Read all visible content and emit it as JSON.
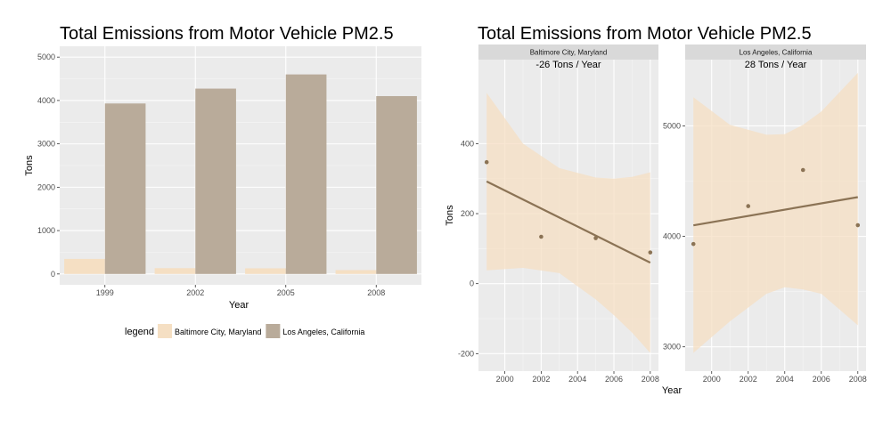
{
  "chart_data": [
    {
      "type": "bar",
      "title": "Total Emissions from Motor Vehicle PM2.5",
      "xlabel": "Year",
      "ylabel": "Tons",
      "ylim": [
        -250,
        5250
      ],
      "yticks": [
        "0",
        "1000",
        "2000",
        "3000",
        "4000",
        "5000"
      ],
      "ytick_values": [
        0,
        1000,
        2000,
        3000,
        4000,
        5000
      ],
      "categories": [
        "1999",
        "2002",
        "2005",
        "2008"
      ],
      "grid": true,
      "legend_position": "bottom",
      "legend_title": "legend",
      "series": [
        {
          "name": "Baltimore City, Maryland",
          "color": "#f5dfc3",
          "values": [
            347,
            134,
            130,
            89
          ]
        },
        {
          "name": "Los Angeles, California",
          "color": "#b9ab9a",
          "values": [
            3931,
            4274,
            4601,
            4101
          ]
        }
      ]
    },
    {
      "type": "scatter",
      "title": "Total Emissions from Motor Vehicle PM2.5",
      "xlabel": "Year",
      "ylabel": "Tons",
      "grid": true,
      "xticks": [
        "2000",
        "2002",
        "2004",
        "2006",
        "2008"
      ],
      "xtick_values": [
        2000,
        2002,
        2004,
        2006,
        2008
      ],
      "xlim": [
        1998.55,
        2008.45
      ],
      "point_color": "#8b7355",
      "line_color": "#8b7355",
      "band_color": "#f5dfc3",
      "panels": [
        {
          "strip": "Baltimore City, Maryland",
          "annotation": "-26 Tons / Year",
          "ylim": [
            -250,
            640
          ],
          "yticks": [
            "-200",
            "0",
            "200",
            "400"
          ],
          "ytick_values": [
            -200,
            0,
            200,
            400
          ],
          "points": {
            "x": [
              1999,
              2002,
              2005,
              2008
            ],
            "y": [
              347,
              134,
              130,
              89
            ]
          },
          "fit": {
            "x": [
              1999,
              2008
            ],
            "y": [
              292,
              60
            ]
          },
          "band": {
            "x": [
              1999,
              2001,
              2003,
              2005,
              2006,
              2007,
              2008
            ],
            "upper": [
              545,
              400,
              330,
              303,
              300,
              305,
              318
            ],
            "lower": [
              38,
              45,
              30,
              -45,
              -90,
              -140,
              -198
            ]
          }
        },
        {
          "strip": "Los Angeles, California",
          "annotation": "28 Tons / Year",
          "ylim": [
            2780,
            5600
          ],
          "yticks": [
            "3000",
            "4000",
            "5000"
          ],
          "ytick_values": [
            3000,
            4000,
            5000
          ],
          "points": {
            "x": [
              1999,
              2002,
              2005,
              2008
            ],
            "y": [
              3931,
              4274,
              4601,
              4101
            ]
          },
          "fit": {
            "x": [
              1999,
              2008
            ],
            "y": [
              4100,
              4355
            ]
          },
          "band": {
            "x": [
              1999,
              2001,
              2003,
              2004,
              2005,
              2006,
              2008
            ],
            "upper": [
              5260,
              5010,
              4920,
              4925,
              5010,
              5130,
              5480
            ],
            "lower": [
              2945,
              3230,
              3480,
              3540,
              3520,
              3480,
              3195
            ]
          }
        }
      ]
    }
  ]
}
